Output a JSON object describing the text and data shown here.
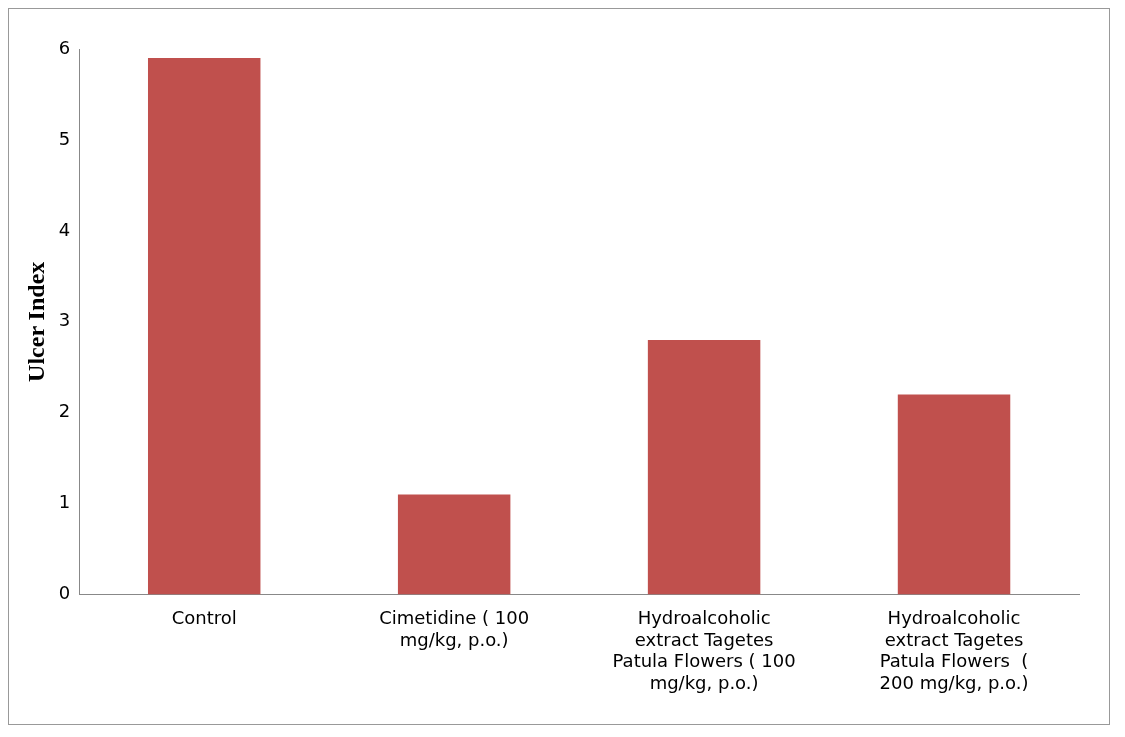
{
  "chart_data": {
    "type": "bar",
    "ylabel": "Ulcer Index",
    "categories": [
      "Control",
      "Cimetidine ( 100 mg/kg, p.o.)",
      "Hydroalcoholic extract Tagetes Patula Flowers ( 100 mg/kg, p.o.)",
      "Hydroalcoholic extract Tagetes Patula Flowers  ( 200 mg/kg, p.o.)"
    ],
    "values": [
      5.9,
      1.1,
      2.8,
      2.2
    ],
    "color": "#c0504d",
    "ylim": [
      0,
      6
    ],
    "yticks": [
      0,
      1,
      2,
      3,
      4,
      5,
      6
    ],
    "grid": false,
    "legend": false
  }
}
